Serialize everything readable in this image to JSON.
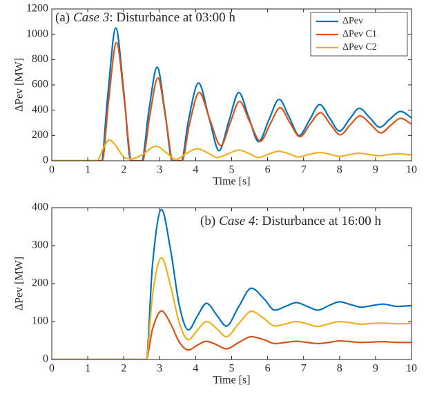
{
  "chart_data": [
    {
      "type": "line",
      "annotation": {
        "prefix": "(a)",
        "emphasis": "Case 3",
        "suffix": ": Disturbance at 03:00 h"
      },
      "x_label": "Time [s]",
      "y_label": "ΔPev [MW]",
      "xlim": [
        0,
        10
      ],
      "xticks": [
        0,
        1,
        2,
        3,
        4,
        5,
        6,
        7,
        8,
        9,
        10
      ],
      "ylim": [
        0,
        1200
      ],
      "yticks": [
        0,
        200,
        400,
        600,
        800,
        1000,
        1200
      ],
      "legend": "upper right",
      "series": [
        {
          "name": "ΔPev",
          "color": "#0072BD",
          "x": [
            0,
            1.2,
            1.38,
            1.55,
            1.78,
            2.0,
            2.2,
            2.5,
            2.7,
            2.93,
            3.15,
            3.35,
            3.6,
            3.8,
            4.08,
            4.38,
            4.65,
            4.92,
            5.2,
            5.48,
            5.75,
            6.03,
            6.32,
            6.6,
            6.88,
            7.16,
            7.45,
            7.72,
            8.0,
            8.28,
            8.55,
            8.84,
            9.12,
            9.4,
            9.7,
            10
          ],
          "values": [
            0,
            0,
            0,
            500,
            1050,
            550,
            0,
            0,
            400,
            740,
            380,
            0,
            0,
            320,
            615,
            330,
            80,
            310,
            540,
            340,
            150,
            320,
            485,
            345,
            200,
            320,
            445,
            340,
            235,
            330,
            415,
            340,
            265,
            330,
            390,
            340
          ]
        },
        {
          "name": "ΔPev C1",
          "color": "#D95319",
          "x": [
            0,
            1.4,
            1.57,
            1.8,
            2.02,
            2.22,
            2.52,
            2.72,
            2.95,
            3.17,
            3.37,
            3.62,
            3.82,
            4.1,
            4.4,
            4.7,
            4.96,
            5.22,
            5.5,
            5.8,
            6.07,
            6.35,
            6.62,
            6.9,
            7.18,
            7.47,
            7.74,
            8.02,
            8.3,
            8.57,
            8.86,
            9.15,
            9.42,
            9.7,
            10
          ],
          "values": [
            0,
            0,
            450,
            935,
            470,
            0,
            0,
            350,
            655,
            330,
            0,
            0,
            280,
            540,
            320,
            120,
            300,
            470,
            310,
            155,
            290,
            420,
            300,
            190,
            290,
            380,
            290,
            205,
            285,
            355,
            290,
            220,
            280,
            335,
            290
          ]
        },
        {
          "name": "ΔPev C2",
          "color": "#EDB120",
          "x": [
            0,
            1.25,
            1.45,
            1.6,
            1.75,
            2.0,
            2.2,
            2.5,
            2.9,
            3.2,
            3.45,
            3.75,
            4.05,
            4.35,
            4.6,
            4.9,
            5.2,
            5.5,
            5.75,
            6.0,
            6.3,
            6.6,
            6.85,
            7.15,
            7.45,
            7.75,
            8.0,
            8.3,
            8.55,
            8.85,
            9.1,
            9.4,
            9.65,
            10
          ],
          "values": [
            0,
            0,
            110,
            165,
            130,
            30,
            15,
            45,
            115,
            60,
            10,
            60,
            95,
            60,
            25,
            55,
            85,
            55,
            25,
            50,
            75,
            55,
            30,
            50,
            65,
            50,
            35,
            50,
            60,
            48,
            40,
            50,
            55,
            45
          ]
        }
      ]
    },
    {
      "type": "line",
      "annotation": {
        "prefix": "(b)",
        "emphasis": "Case 4",
        "suffix": ": Disturbance at 16:00 h"
      },
      "x_label": "Time [s]",
      "y_label": "ΔPev [MW]",
      "xlim": [
        0,
        10
      ],
      "xticks": [
        0,
        1,
        2,
        3,
        4,
        5,
        6,
        7,
        8,
        9,
        10
      ],
      "ylim": [
        0,
        400
      ],
      "yticks": [
        0,
        100,
        200,
        300,
        400
      ],
      "x": [
        0,
        2.62,
        2.8,
        3.05,
        3.3,
        3.55,
        3.8,
        4.05,
        4.3,
        4.6,
        4.85,
        5.2,
        5.55,
        5.9,
        6.2,
        6.5,
        6.8,
        7.1,
        7.4,
        7.7,
        8.0,
        8.3,
        8.6,
        8.9,
        9.2,
        9.6,
        10
      ],
      "series": [
        {
          "color": "#0072BD",
          "values": [
            0,
            0,
            250,
            395,
            290,
            140,
            78,
            115,
            148,
            115,
            88,
            140,
            188,
            160,
            130,
            140,
            150,
            140,
            130,
            142,
            152,
            145,
            138,
            142,
            146,
            140,
            142
          ]
        },
        {
          "color": "#D95319",
          "values": [
            0,
            0,
            80,
            128,
            95,
            45,
            25,
            38,
            48,
            38,
            28,
            45,
            60,
            52,
            42,
            45,
            48,
            45,
            42,
            45,
            49,
            47,
            45,
            46,
            47,
            45,
            45
          ]
        },
        {
          "color": "#EDB120",
          "values": [
            0,
            0,
            170,
            268,
            195,
            95,
            52,
            78,
            100,
            80,
            60,
            95,
            127,
            108,
            88,
            94,
            100,
            94,
            87,
            94,
            100,
            97,
            93,
            95,
            96,
            94,
            95
          ]
        }
      ]
    }
  ]
}
